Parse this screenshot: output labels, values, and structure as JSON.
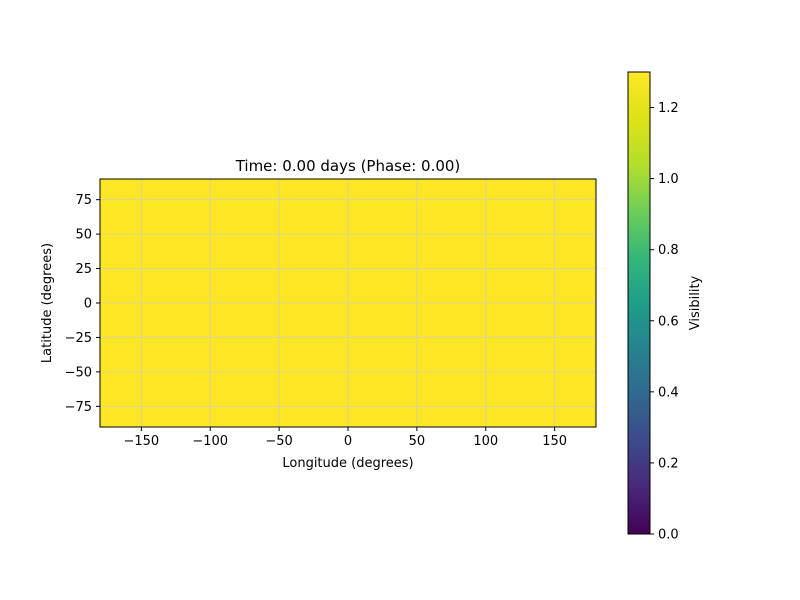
{
  "chart_data": {
    "type": "heatmap",
    "title": "Time: 0.00 days (Phase: 0.00)",
    "xlabel": "Longitude (degrees)",
    "ylabel": "Latitude (degrees)",
    "xlim": [
      -180,
      180
    ],
    "ylim": [
      -90,
      90
    ],
    "xticks": [
      -150,
      -100,
      -50,
      0,
      50,
      100,
      150
    ],
    "yticks": [
      -75,
      -50,
      -25,
      0,
      25,
      50,
      75
    ],
    "grid": true,
    "field_value": 1.3,
    "colormap": "viridis",
    "colorbar": {
      "label": "Visibility",
      "range": [
        0.0,
        1.3
      ],
      "ticks": [
        "0.0",
        "0.2",
        "0.4",
        "0.6",
        "0.8",
        "1.0",
        "1.2"
      ]
    }
  },
  "colors": {
    "field": "#fde725",
    "grid": "#d0d0b0"
  }
}
